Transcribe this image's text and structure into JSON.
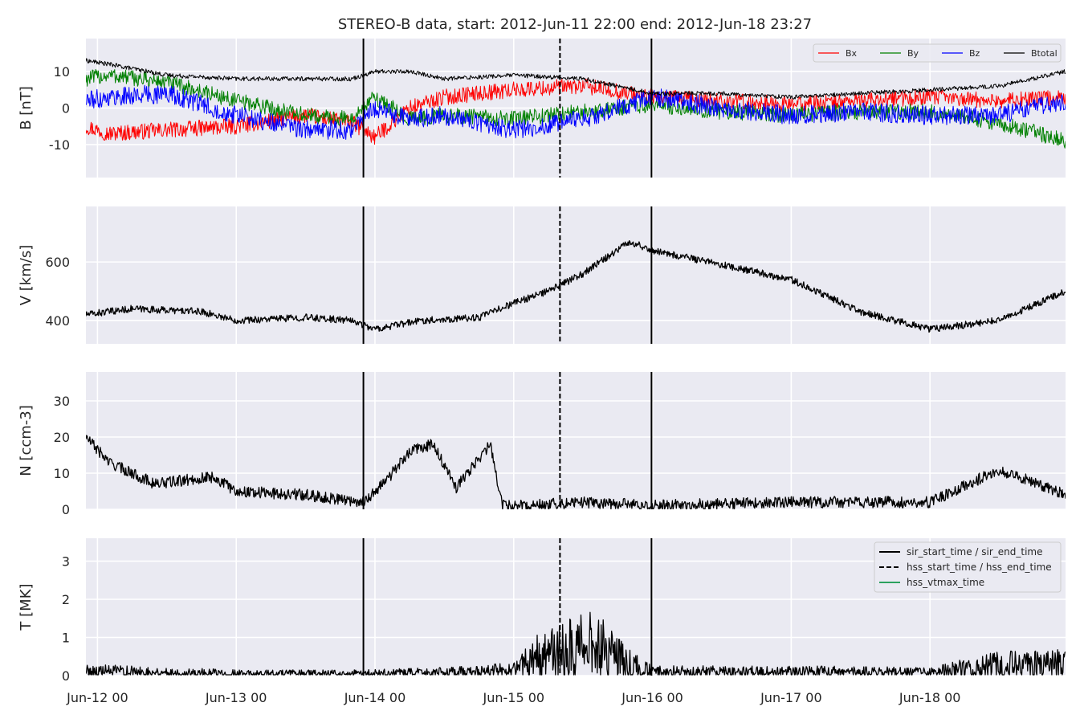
{
  "figure": {
    "title": "STEREO-B data, start: 2012-Jun-11 22:00  end: 2012-Jun-18 23:27"
  },
  "chart_data": {
    "type": "line",
    "x_unit": "date-time",
    "x_range": [
      "2012-06-11T22:00",
      "2012-06-18T23:27"
    ],
    "x_ticks": [
      {
        "t": "2012-06-12T00:00",
        "label": "Jun-12 00"
      },
      {
        "t": "2012-06-13T00:00",
        "label": "Jun-13 00"
      },
      {
        "t": "2012-06-14T00:00",
        "label": "Jun-14 00"
      },
      {
        "t": "2012-06-15T00:00",
        "label": "Jun-15 00"
      },
      {
        "t": "2012-06-16T00:00",
        "label": "Jun-16 00"
      },
      {
        "t": "2012-06-17T00:00",
        "label": "Jun-17 00"
      },
      {
        "t": "2012-06-18T00:00",
        "label": "Jun-18 00"
      }
    ],
    "grid": true,
    "event_lines": [
      {
        "t": "2012-06-13T22:00",
        "style": "solid",
        "label": "sir_start_time / sir_end_time",
        "color": "#000000"
      },
      {
        "t": "2012-06-15T08:00",
        "style": "dashed",
        "label": "hss_start_time / hss_end_time",
        "color": "#000000"
      },
      {
        "t": "2012-06-15T23:50",
        "style": "solid",
        "label": "sir_start_time / sir_end_time",
        "color": "#000000"
      }
    ],
    "event_legend": {
      "placement": "upper right",
      "entries": [
        {
          "label": "sir_start_time / sir_end_time",
          "style": "solid",
          "color": "#000000"
        },
        {
          "label": "hss_start_time / hss_end_time",
          "style": "dashed",
          "color": "#000000"
        },
        {
          "label": "hss_vtmax_time",
          "style": "solid",
          "color": "#2ca25f"
        }
      ]
    },
    "panels": [
      {
        "id": "B",
        "ylabel": "B [nT]",
        "ylim": [
          -19,
          19
        ],
        "yticks": [
          -10,
          0,
          10
        ],
        "legend_placement": "upper right",
        "series": [
          {
            "name": "Bx",
            "color": "#ff0000",
            "noise": 2.2,
            "x": [
              "2012-06-11T22:00",
              "2012-06-12T02:00",
              "2012-06-12T12:00",
              "2012-06-13T00:00",
              "2012-06-13T12:00",
              "2012-06-13T20:00",
              "2012-06-14T00:00",
              "2012-06-14T06:00",
              "2012-06-14T12:00",
              "2012-06-15T00:00",
              "2012-06-15T12:00",
              "2012-06-16T00:00",
              "2012-06-16T12:00",
              "2012-06-17T00:00",
              "2012-06-17T12:00",
              "2012-06-18T00:00",
              "2012-06-18T12:00",
              "2012-06-18T23:27"
            ],
            "y": [
              -5,
              -7,
              -6,
              -5,
              -2,
              -4,
              -8,
              0,
              3,
              5,
              6,
              3,
              2,
              1,
              2,
              3,
              2,
              3
            ]
          },
          {
            "name": "By",
            "color": "#008000",
            "noise": 2.2,
            "x": [
              "2012-06-11T22:00",
              "2012-06-12T02:00",
              "2012-06-12T12:00",
              "2012-06-13T00:00",
              "2012-06-13T12:00",
              "2012-06-13T20:00",
              "2012-06-14T00:00",
              "2012-06-14T06:00",
              "2012-06-14T12:00",
              "2012-06-15T00:00",
              "2012-06-15T12:00",
              "2012-06-16T00:00",
              "2012-06-16T12:00",
              "2012-06-17T00:00",
              "2012-06-17T12:00",
              "2012-06-18T00:00",
              "2012-06-18T12:00",
              "2012-06-18T23:27"
            ],
            "y": [
              8,
              9,
              7,
              2,
              -2,
              -3,
              3,
              -3,
              -2,
              -3,
              -1,
              1,
              -1,
              -2,
              -1,
              -1,
              -4,
              -9
            ]
          },
          {
            "name": "Bz",
            "color": "#0000ff",
            "noise": 2.6,
            "x": [
              "2012-06-11T22:00",
              "2012-06-12T02:00",
              "2012-06-12T12:00",
              "2012-06-13T00:00",
              "2012-06-13T12:00",
              "2012-06-13T20:00",
              "2012-06-14T00:00",
              "2012-06-14T06:00",
              "2012-06-14T12:00",
              "2012-06-15T00:00",
              "2012-06-15T12:00",
              "2012-06-16T00:00",
              "2012-06-16T12:00",
              "2012-06-17T00:00",
              "2012-06-17T12:00",
              "2012-06-18T00:00",
              "2012-06-18T12:00",
              "2012-06-18T23:27"
            ],
            "y": [
              2,
              3,
              4,
              -2,
              -6,
              -6,
              0,
              -3,
              -2,
              -6,
              -3,
              3,
              0,
              -2,
              -1,
              -2,
              -2,
              2
            ]
          },
          {
            "name": "Btotal",
            "color": "#000000",
            "noise": 0.6,
            "x": [
              "2012-06-11T22:00",
              "2012-06-12T02:00",
              "2012-06-12T12:00",
              "2012-06-13T00:00",
              "2012-06-13T12:00",
              "2012-06-13T20:00",
              "2012-06-14T00:00",
              "2012-06-14T06:00",
              "2012-06-14T12:00",
              "2012-06-15T00:00",
              "2012-06-15T12:00",
              "2012-06-16T00:00",
              "2012-06-16T12:00",
              "2012-06-17T00:00",
              "2012-06-17T12:00",
              "2012-06-18T00:00",
              "2012-06-18T12:00",
              "2012-06-18T23:27"
            ],
            "y": [
              13,
              12,
              9,
              8,
              8,
              8,
              10,
              10,
              8,
              9,
              8,
              4,
              4,
              3,
              4,
              5,
              6,
              10
            ]
          }
        ]
      },
      {
        "id": "V",
        "ylabel": "V [km/s]",
        "ylim": [
          320,
          790
        ],
        "yticks": [
          400,
          600
        ],
        "series": [
          {
            "name": "V",
            "color": "#000000",
            "noise": 12,
            "x": [
              "2012-06-11T22:00",
              "2012-06-12T06:00",
              "2012-06-12T18:00",
              "2012-06-13T00:00",
              "2012-06-13T12:00",
              "2012-06-13T20:00",
              "2012-06-14T00:00",
              "2012-06-14T08:00",
              "2012-06-14T18:00",
              "2012-06-15T00:00",
              "2012-06-15T06:00",
              "2012-06-15T12:00",
              "2012-06-15T20:00",
              "2012-06-16T00:00",
              "2012-06-16T12:00",
              "2012-06-17T00:00",
              "2012-06-17T12:00",
              "2012-06-18T00:00",
              "2012-06-18T12:00",
              "2012-06-18T23:27"
            ],
            "y": [
              420,
              440,
              430,
              400,
              410,
              400,
              370,
              400,
              410,
              460,
              500,
              560,
              670,
              640,
              590,
              540,
              430,
              370,
              400,
              500
            ]
          }
        ]
      },
      {
        "id": "N",
        "ylabel": "N [ccm-3]",
        "ylim": [
          0,
          38
        ],
        "yticks": [
          0,
          10,
          20,
          30
        ],
        "series": [
          {
            "name": "N",
            "color": "#000000",
            "noise": 1.6,
            "x": [
              "2012-06-11T22:00",
              "2012-06-12T02:00",
              "2012-06-12T10:00",
              "2012-06-12T20:00",
              "2012-06-13T00:00",
              "2012-06-13T12:00",
              "2012-06-13T22:00",
              "2012-06-14T02:00",
              "2012-06-14T06:00",
              "2012-06-14T10:00",
              "2012-06-14T14:00",
              "2012-06-14T20:00",
              "2012-06-14T22:00",
              "2012-06-15T00:00",
              "2012-06-15T12:00",
              "2012-06-16T00:00",
              "2012-06-17T00:00",
              "2012-06-17T12:00",
              "2012-06-18T00:00",
              "2012-06-18T12:00",
              "2012-06-18T23:27"
            ],
            "y": [
              20,
              13,
              7,
              9,
              5,
              4,
              2,
              8,
              16,
              18,
              6,
              18,
              1,
              1,
              2,
              1,
              2,
              2,
              2,
              11,
              4
            ]
          }
        ]
      },
      {
        "id": "T",
        "ylabel": "T [MK]",
        "ylim": [
          0,
          3.6
        ],
        "yticks": [
          0,
          1,
          2,
          3
        ],
        "series": [
          {
            "name": "T",
            "color": "#000000",
            "noise": 0.05,
            "x": [
              "2012-06-11T22:00",
              "2012-06-13T00:00",
              "2012-06-13T22:00",
              "2012-06-14T12:00",
              "2012-06-15T00:00",
              "2012-06-15T04:00",
              "2012-06-15T10:00",
              "2012-06-15T14:00",
              "2012-06-15T20:00",
              "2012-06-16T00:00",
              "2012-06-17T00:00",
              "2012-06-18T00:00",
              "2012-06-18T12:00",
              "2012-06-18T23:27"
            ],
            "y": [
              0.12,
              0.05,
              0.05,
              0.08,
              0.15,
              0.5,
              0.7,
              0.8,
              0.3,
              0.1,
              0.1,
              0.08,
              0.3,
              0.3
            ]
          }
        ]
      }
    ]
  }
}
